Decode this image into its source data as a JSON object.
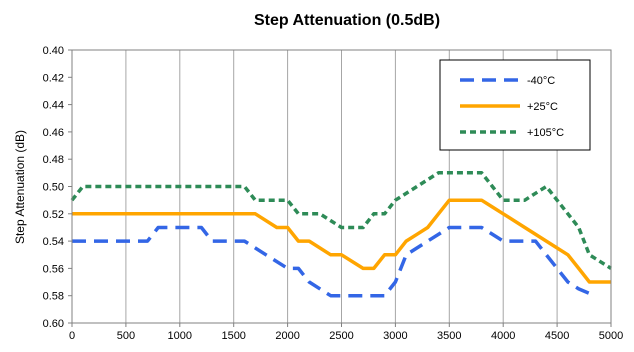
{
  "chart_data": {
    "type": "line",
    "title": "Step Attenuation (0.5dB)",
    "xlabel": "",
    "ylabel": "Step Attenuation (dB)",
    "xlim": [
      0,
      5000
    ],
    "ylim": [
      0.4,
      0.6
    ],
    "y_inverted": true,
    "x_ticks": [
      0,
      500,
      1000,
      1500,
      2000,
      2500,
      3000,
      3500,
      4000,
      4500,
      5000
    ],
    "y_ticks": [
      "0.40",
      "0.42",
      "0.44",
      "0.46",
      "0.48",
      "0.50",
      "0.52",
      "0.54",
      "0.56",
      "0.58",
      "0.60"
    ],
    "grid": "vertical",
    "legend_position": "top-right",
    "series": [
      {
        "name": "-40°C",
        "color": "#3366E6",
        "dash": "long-dash",
        "x": [
          0,
          700,
          800,
          900,
          1000,
          1100,
          1200,
          1300,
          1600,
          1800,
          2000,
          2100,
          2200,
          2400,
          2600,
          2800,
          2900,
          3000,
          3100,
          3300,
          3500,
          3600,
          3800,
          4000,
          4100,
          4200,
          4300,
          4400,
          4500,
          4600,
          4700,
          4850
        ],
        "values": [
          0.54,
          0.54,
          0.53,
          0.53,
          0.53,
          0.53,
          0.53,
          0.54,
          0.54,
          0.55,
          0.56,
          0.56,
          0.57,
          0.58,
          0.58,
          0.58,
          0.58,
          0.57,
          0.55,
          0.54,
          0.53,
          0.53,
          0.53,
          0.54,
          0.54,
          0.54,
          0.54,
          0.55,
          0.56,
          0.57,
          0.575,
          0.58
        ]
      },
      {
        "name": "+25°C",
        "color": "#FFA500",
        "dash": "solid",
        "x": [
          0,
          1600,
          1700,
          1900,
          2000,
          2100,
          2200,
          2400,
          2500,
          2700,
          2800,
          2900,
          3000,
          3100,
          3200,
          3300,
          3400,
          3500,
          3600,
          3700,
          3800,
          3900,
          4000,
          4200,
          4400,
          4600,
          4700,
          4800,
          4900,
          5000
        ],
        "values": [
          0.52,
          0.52,
          0.52,
          0.53,
          0.53,
          0.54,
          0.54,
          0.55,
          0.55,
          0.56,
          0.56,
          0.55,
          0.55,
          0.54,
          0.535,
          0.53,
          0.52,
          0.51,
          0.51,
          0.51,
          0.51,
          0.515,
          0.52,
          0.53,
          0.54,
          0.55,
          0.56,
          0.57,
          0.57,
          0.57
        ]
      },
      {
        "name": "+105°C",
        "color": "#2E8B57",
        "dash": "short-dash",
        "x": [
          0,
          100,
          200,
          300,
          400,
          600,
          800,
          1000,
          1200,
          1400,
          1600,
          1700,
          1900,
          2000,
          2100,
          2300,
          2500,
          2700,
          2800,
          2900,
          3000,
          3200,
          3400,
          3500,
          3600,
          3700,
          3800,
          3900,
          4000,
          4100,
          4200,
          4300,
          4400,
          4500,
          4600,
          4700,
          4800,
          5000
        ],
        "values": [
          0.51,
          0.5,
          0.5,
          0.5,
          0.5,
          0.5,
          0.5,
          0.5,
          0.5,
          0.5,
          0.5,
          0.51,
          0.51,
          0.51,
          0.52,
          0.52,
          0.53,
          0.53,
          0.52,
          0.52,
          0.51,
          0.5,
          0.49,
          0.49,
          0.49,
          0.49,
          0.49,
          0.5,
          0.51,
          0.51,
          0.51,
          0.505,
          0.5,
          0.51,
          0.52,
          0.53,
          0.55,
          0.56
        ]
      }
    ]
  }
}
